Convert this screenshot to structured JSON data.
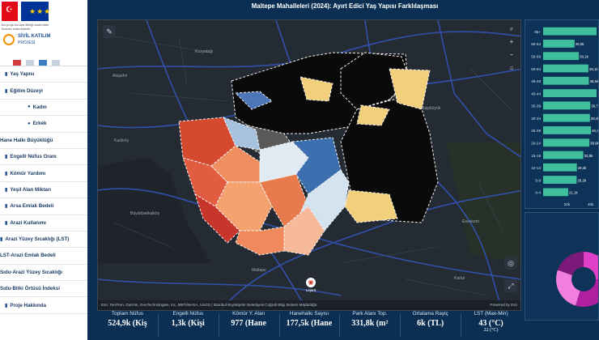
{
  "header": {
    "title": "Maltepe Mahalleleri (2024): Ayırt Edici Yaş Yapısı Farklılaşması"
  },
  "logos": {
    "tr_flag_icon": "turkey-flag-icon",
    "eu_flag_icon": "eu-flag-icon",
    "eu_caption": "Bu proje Avrupa Birliği tarafından finanse edilmektedir.",
    "project_name": "SİVİL KATILIM",
    "project_sub": "PROJESİ"
  },
  "sidebar": {
    "items": [
      {
        "label": "Yaş Yapısı",
        "icon": "chart-icon",
        "indent": 0
      },
      {
        "label": "Eğitim Düzeyi",
        "icon": "chart-icon",
        "indent": 0
      },
      {
        "label": "Kadın",
        "icon": "person-icon",
        "indent": 1
      },
      {
        "label": "Erkek",
        "icon": "person-icon",
        "indent": 1
      },
      {
        "label": "Hane Halkı Büyüklüğü",
        "icon": "",
        "indent": -1
      },
      {
        "label": "Engelli Nüfus Oranı",
        "icon": "chart-icon",
        "indent": 0
      },
      {
        "label": "Kömür Yardımı",
        "icon": "chart-icon",
        "indent": 0
      },
      {
        "label": "Yeşil Alan Miktarı",
        "icon": "chart-icon",
        "indent": 0
      },
      {
        "label": "Arsa Emlak Bedeli",
        "icon": "chart-icon",
        "indent": 0
      },
      {
        "label": "Arazi Kullanımı",
        "icon": "chart-icon",
        "indent": 0
      },
      {
        "label": "Arazi Yüzey Sıcaklığı (LST)",
        "icon": "chart-icon",
        "indent": -1
      },
      {
        "label": "LST-Arazi Emlak Bedeli",
        "icon": "",
        "indent": -1
      },
      {
        "label": "Sıdu-Arazi Yüzey Sıcaklığı",
        "icon": "",
        "indent": -1
      },
      {
        "label": "Sıdu-Bitki Örtüsü İndeksi",
        "icon": "",
        "indent": -1
      },
      {
        "label": "Proje Hakkında",
        "icon": "chart-icon",
        "indent": 0
      }
    ]
  },
  "map": {
    "labels": [
      "Ataşehir",
      "Kozyatağı",
      "Kadıköy",
      "Maltepe",
      "Başıbüyük",
      "Esenkent",
      "Kartal",
      "Büyükbakkalköy"
    ],
    "attribution": "Esri, TomTom, Garmin, GeoTechnologies, Inc, METI/NASA, USGS | İstanbul Büyükşehir Belediyesi Coğrafi Bilgi Sistemi Müdürlüğü",
    "powered": "Powered by Esri",
    "legend_label": "Lejant",
    "tool_icon": "pencil-icon",
    "zoom_icons": [
      "search-icon",
      "plus-icon",
      "minus-icon",
      "home-icon"
    ],
    "locate_icon": "locate-icon",
    "expand_icon": "expand-icon"
  },
  "chart_data": {
    "type": "bar",
    "orientation": "horizontal",
    "categories": [
      "65+",
      "60-64",
      "55-59",
      "50-54",
      "45-49",
      "40-44",
      "35-39",
      "30-34",
      "25-29",
      "20-24",
      "15-19",
      "10-14",
      "5-9",
      "0-4"
    ],
    "values": [
      null,
      26.5,
      30.1,
      38.1,
      38.5,
      null,
      39.7,
      39.4,
      40.3,
      38.9,
      33.8,
      28.4,
      28.2,
      21.1
    ],
    "data_labels": [
      "",
      "26,5k",
      "30,1k",
      "38,1k",
      "38,5k",
      "",
      "39,7k",
      "39,4k",
      "40,3k",
      "38,9k",
      "33,8k",
      "28,4k",
      "28,2k",
      "21,1k"
    ],
    "x_ticks": [
      "20k",
      "40k"
    ],
    "xlim": [
      0,
      45
    ],
    "bar_color": "#3fbf9b"
  },
  "donut": {
    "colors": [
      "#e040c8",
      "#b01fa0",
      "#f27fe0",
      "#7c1a7a"
    ]
  },
  "kpis": [
    {
      "label": "Toplam Nüfus",
      "value": "524,9k (Kiş",
      "sub": ""
    },
    {
      "label": "Engelli Nüfus",
      "value": "1,3k (Kişi",
      "sub": ""
    },
    {
      "label": "Kömür Y. Alan",
      "value": "977 (Hane",
      "sub": ""
    },
    {
      "label": "Hanehalkı Sayısı",
      "value": "177,5k (Hane",
      "sub": ""
    },
    {
      "label": "Park Alanı Top.",
      "value": "331,8k (m²",
      "sub": ""
    },
    {
      "label": "Ortalama Rayiç",
      "value": "6k (TL)",
      "sub": ""
    },
    {
      "label": "LST (Max-Min)",
      "value": "43 (°C)",
      "sub": "22 (°C)"
    }
  ]
}
